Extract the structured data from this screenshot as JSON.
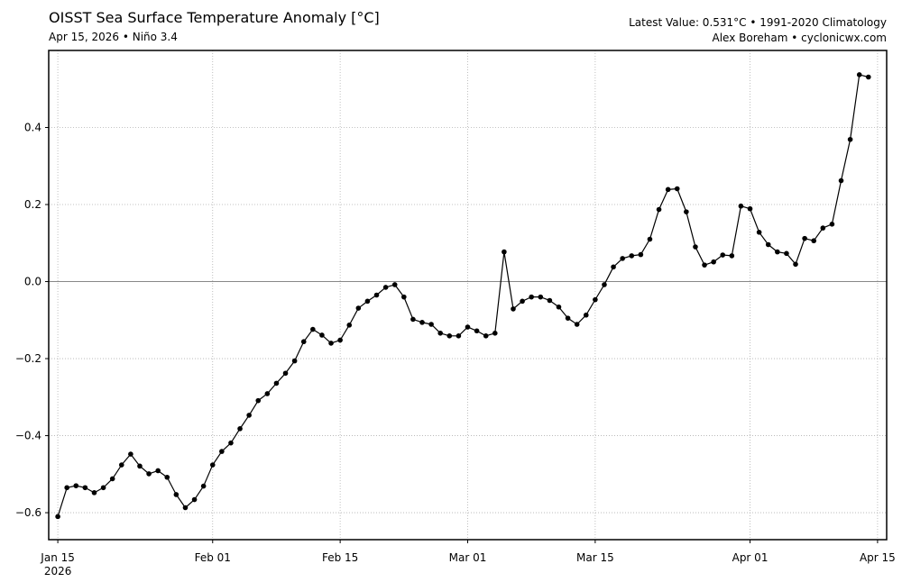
{
  "header": {
    "title": "OISST Sea Surface Temperature Anomaly [°C]",
    "subtitle": "Apr 15, 2026 • Niño 3.4",
    "info_line1": "Latest Value: 0.531°C • 1991-2020 Climatology",
    "info_line2": "Alex Boreham • cyclonicwx.com"
  },
  "chart_data": {
    "type": "line",
    "title": "OISST Sea Surface Temperature Anomaly [°C]",
    "subtitle": "Apr 15, 2026 • Niño 3.4",
    "xlabel": "",
    "ylabel": "",
    "x_start": "2026-01-15",
    "x_end": "2026-04-15",
    "xlim": [
      "2026-01-14",
      "2026-04-16"
    ],
    "ylim": [
      -0.67,
      0.6
    ],
    "x_ticks": [
      {
        "date": "2026-01-15",
        "label": "Jan 15",
        "label2": "2026"
      },
      {
        "date": "2026-02-01",
        "label": "Feb 01"
      },
      {
        "date": "2026-02-15",
        "label": "Feb 15"
      },
      {
        "date": "2026-03-01",
        "label": "Mar 01"
      },
      {
        "date": "2026-03-15",
        "label": "Mar 15"
      },
      {
        "date": "2026-04-01",
        "label": "Apr 01"
      },
      {
        "date": "2026-04-15",
        "label": "Apr 15"
      }
    ],
    "y_ticks": [
      -0.6,
      -0.4,
      -0.2,
      0.0,
      0.2,
      0.4
    ],
    "y_tick_labels": [
      "−0.6",
      "−0.4",
      "−0.2",
      "0.0",
      "0.2",
      "0.4"
    ],
    "grid": true,
    "zero_line": true,
    "series": [
      {
        "color": "#000000",
        "values": [
          -0.61,
          -0.535,
          -0.53,
          -0.535,
          -0.548,
          -0.535,
          -0.512,
          -0.476,
          -0.448,
          -0.479,
          -0.499,
          -0.491,
          -0.508,
          -0.553,
          -0.587,
          -0.566,
          -0.531,
          -0.476,
          -0.441,
          -0.419,
          -0.382,
          -0.347,
          -0.309,
          -0.291,
          -0.264,
          -0.238,
          -0.206,
          -0.156,
          -0.124,
          -0.139,
          -0.16,
          -0.152,
          -0.113,
          -0.069,
          -0.051,
          -0.035,
          -0.015,
          -0.008,
          -0.04,
          -0.098,
          -0.106,
          -0.111,
          -0.134,
          -0.141,
          -0.141,
          -0.118,
          -0.128,
          -0.141,
          -0.134,
          0.077,
          -0.071,
          -0.051,
          -0.04,
          -0.04,
          -0.049,
          -0.066,
          -0.095,
          -0.111,
          -0.087,
          -0.047,
          -0.008,
          0.038,
          0.06,
          0.067,
          0.07,
          0.11,
          0.187,
          0.239,
          0.241,
          0.181,
          0.09,
          0.043,
          0.051,
          0.069,
          0.067,
          0.196,
          0.189,
          0.128,
          0.096,
          0.077,
          0.073,
          0.045,
          0.112,
          0.106,
          0.139,
          0.149,
          0.262,
          0.369,
          0.537,
          0.531
        ]
      }
    ]
  }
}
